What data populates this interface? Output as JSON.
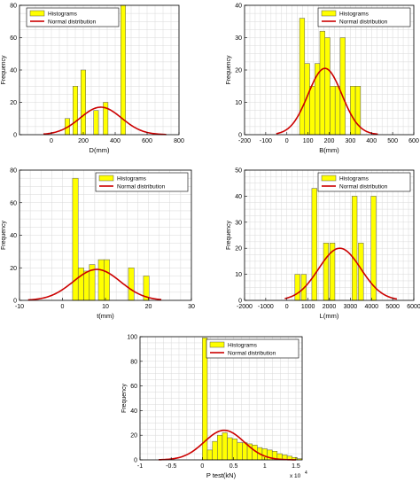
{
  "colors": {
    "bar_fill": "#ffff00",
    "bar_stroke": "#555555",
    "curve": "#cc0000",
    "grid": "#d9d9d9",
    "axis": "#000000"
  },
  "chart_data": [
    {
      "id": "D",
      "type": "bar",
      "xlabel": "D(mm)",
      "ylabel": "Frequency",
      "xlim": [
        -200,
        800
      ],
      "ylim": [
        0,
        80
      ],
      "xticks": [
        0,
        200,
        400,
        600,
        800
      ],
      "yticks": [
        0,
        20,
        40,
        60,
        80
      ],
      "xtick_labels": [
        "0",
        "200",
        "400",
        "600",
        "800"
      ],
      "ytick_labels": [
        "0",
        "20",
        "40",
        "60",
        "80"
      ],
      "grid": true,
      "legend": "top-left",
      "series": [
        {
          "name": "Histograms",
          "kind": "histogram",
          "bin_width": 30,
          "centers": [
            100,
            150,
            200,
            280,
            340,
            450
          ],
          "values": [
            10,
            30,
            40,
            15,
            20,
            80
          ]
        },
        {
          "name": "Normal distribution",
          "kind": "normal_curve",
          "mean": 310,
          "sd": 130,
          "peak": 17,
          "range": [
            -50,
            720
          ]
        }
      ]
    },
    {
      "id": "B",
      "type": "bar",
      "xlabel": "B(mm)",
      "ylabel": "Frequency",
      "xlim": [
        -200,
        600
      ],
      "ylim": [
        0,
        40
      ],
      "xticks": [
        -200,
        -100,
        0,
        100,
        200,
        300,
        400,
        500,
        600
      ],
      "yticks": [
        0,
        10,
        20,
        30,
        40
      ],
      "xtick_labels": [
        "-200",
        "-100",
        "0",
        "100",
        "200",
        "300",
        "400",
        "500",
        "600"
      ],
      "ytick_labels": [
        "0",
        "10",
        "20",
        "30",
        "40"
      ],
      "grid": true,
      "legend": "top-right",
      "series": [
        {
          "name": "Histograms",
          "kind": "histogram",
          "bin_width": 24,
          "centers": [
            72,
            96,
            120,
            144,
            168,
            192,
            216,
            240,
            264,
            312,
            336
          ],
          "values": [
            36,
            22,
            15,
            22,
            32,
            30,
            15,
            15,
            30,
            15,
            15
          ]
        },
        {
          "name": "Normal distribution",
          "kind": "normal_curve",
          "mean": 180,
          "sd": 80,
          "peak": 20.5,
          "range": [
            -50,
            430
          ]
        }
      ]
    },
    {
      "id": "t",
      "type": "bar",
      "xlabel": "t(mm)",
      "ylabel": "Frequency",
      "xlim": [
        -10,
        30
      ],
      "ylim": [
        0,
        80
      ],
      "xticks": [
        -10,
        0,
        10,
        20,
        30
      ],
      "yticks": [
        0,
        20,
        40,
        60,
        80
      ],
      "xtick_labels": [
        "-10",
        "0",
        "10",
        "20",
        "30"
      ],
      "ytick_labels": [
        "0",
        "20",
        "40",
        "60",
        "80"
      ],
      "grid": true,
      "legend": "top-right",
      "series": [
        {
          "name": "Histograms",
          "kind": "histogram",
          "bin_width": 1.3,
          "centers": [
            3,
            4.3,
            5.6,
            6.9,
            9,
            10.3,
            16,
            19.5
          ],
          "values": [
            75,
            20,
            18,
            22,
            25,
            25,
            20,
            15
          ]
        },
        {
          "name": "Normal distribution",
          "kind": "normal_curve",
          "mean": 8,
          "sd": 5.5,
          "peak": 19,
          "range": [
            -8,
            23
          ]
        }
      ]
    },
    {
      "id": "L",
      "type": "bar",
      "xlabel": "L(mm)",
      "ylabel": "Frequency",
      "xlim": [
        -2000,
        6000
      ],
      "ylim": [
        0,
        50
      ],
      "xticks": [
        -2000,
        -1000,
        0,
        1000,
        2000,
        3000,
        4000,
        5000,
        6000
      ],
      "yticks": [
        0,
        10,
        20,
        30,
        40,
        50
      ],
      "xtick_labels": [
        "-2000",
        "-1000",
        "0",
        "1000",
        "2000",
        "3000",
        "4000",
        "5000",
        "6000"
      ],
      "ytick_labels": [
        "0",
        "10",
        "20",
        "30",
        "40",
        "50"
      ],
      "grid": true,
      "legend": "top-right",
      "series": [
        {
          "name": "Histograms",
          "kind": "histogram",
          "bin_width": 240,
          "centers": [
            500,
            800,
            1300,
            1850,
            2150,
            3200,
            3500,
            4100
          ],
          "values": [
            10,
            10,
            43,
            22,
            22,
            40,
            22,
            40
          ]
        },
        {
          "name": "Normal distribution",
          "kind": "normal_curve",
          "mean": 2500,
          "sd": 1000,
          "peak": 20,
          "range": [
            -100,
            5200
          ]
        }
      ]
    },
    {
      "id": "P",
      "type": "bar",
      "xlabel": "P test(kN)",
      "ylabel": "Frequency",
      "xlim": [
        -1,
        1.6
      ],
      "ylim": [
        0,
        100
      ],
      "xticks": [
        -1,
        -0.5,
        0,
        0.5,
        1,
        1.5
      ],
      "yticks": [
        0,
        20,
        40,
        60,
        80,
        100
      ],
      "xtick_labels": [
        "-1",
        "-0.5",
        "0",
        "0.5",
        "1",
        "1.5"
      ],
      "ytick_labels": [
        "0",
        "20",
        "40",
        "60",
        "80",
        "100"
      ],
      "x_multiplier_label": "x 10",
      "x_multiplier_exp": "4",
      "grid": true,
      "legend": "top-right",
      "series": [
        {
          "name": "Histograms",
          "kind": "histogram",
          "bin_width": 0.08,
          "centers": [
            0.04,
            0.12,
            0.2,
            0.28,
            0.36,
            0.44,
            0.52,
            0.6,
            0.68,
            0.76,
            0.84,
            0.92,
            1.0,
            1.08,
            1.16,
            1.24,
            1.32,
            1.4,
            1.48,
            1.56
          ],
          "values": [
            99,
            8,
            15,
            20,
            22,
            18,
            17,
            14,
            14,
            13,
            12,
            10,
            9,
            8,
            7,
            5,
            4,
            3,
            2,
            1
          ]
        },
        {
          "name": "Normal distribution",
          "kind": "normal_curve",
          "mean": 0.35,
          "sd": 0.32,
          "peak": 24,
          "range": [
            -0.7,
            1.5
          ]
        }
      ]
    }
  ]
}
